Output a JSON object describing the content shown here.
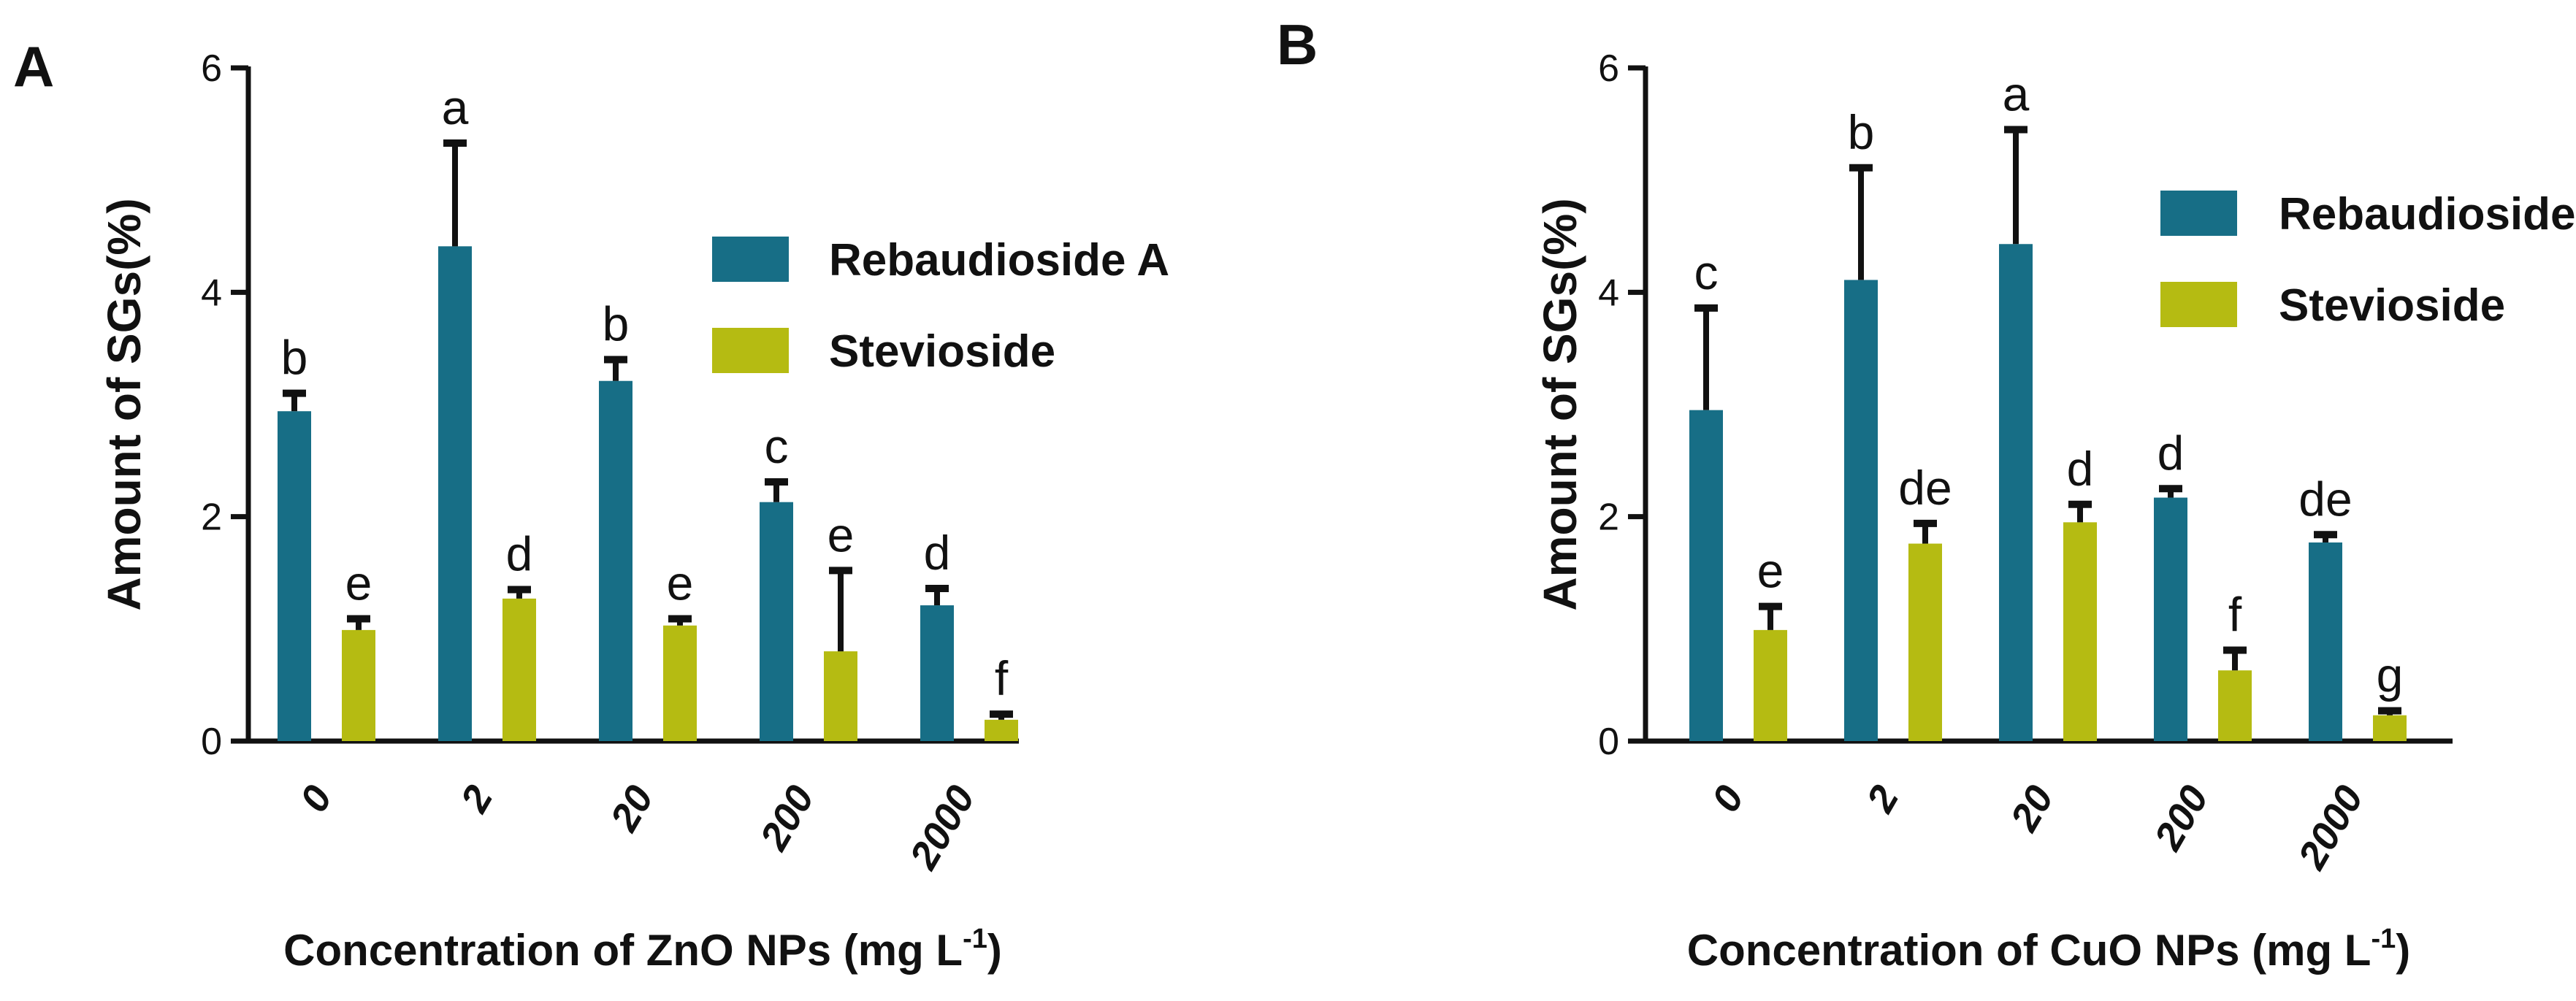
{
  "chart_data": [
    {
      "type": "bar",
      "panel": "A",
      "categories": [
        "0",
        "2",
        "20",
        "200",
        "2000"
      ],
      "series": [
        {
          "name": "Rebaudioside A",
          "color": "#176e86",
          "values": [
            2.94,
            4.41,
            3.21,
            2.13,
            1.21
          ],
          "errors": [
            0.16,
            0.92,
            0.19,
            0.18,
            0.15
          ],
          "labels": [
            "b",
            "a",
            "b",
            "c",
            "d"
          ]
        },
        {
          "name": "Stevioside",
          "color": "#b5bb12",
          "values": [
            0.99,
            1.27,
            1.03,
            0.8,
            0.19
          ],
          "errors": [
            0.1,
            0.08,
            0.06,
            0.72,
            0.05
          ],
          "labels": [
            "e",
            "d",
            "e",
            "e",
            "f"
          ]
        }
      ],
      "title": "",
      "ylabel": "Amount of SGs(%)",
      "xlabel": "Concentration of ZnO NPs",
      "xlabel_unit": "(mg L",
      "xlabel_unit_sup": "-1",
      "xlabel_unit_close": ")",
      "yticks": [
        "0",
        "2",
        "4",
        "6"
      ],
      "ylim": [
        0,
        6
      ],
      "legend_position": "top-right"
    },
    {
      "type": "bar",
      "panel": "B",
      "categories": [
        "0",
        "2",
        "20",
        "200",
        "2000"
      ],
      "series": [
        {
          "name": "Rebaudioside A",
          "color": "#176e86",
          "values": [
            2.95,
            4.11,
            4.43,
            2.17,
            1.77
          ],
          "errors": [
            0.91,
            1.0,
            1.02,
            0.08,
            0.07
          ],
          "labels": [
            "c",
            "b",
            "a",
            "d",
            "de"
          ]
        },
        {
          "name": "Stevioside",
          "color": "#b5bb12",
          "values": [
            0.99,
            1.76,
            1.95,
            0.63,
            0.23
          ],
          "errors": [
            0.21,
            0.18,
            0.16,
            0.18,
            0.04
          ],
          "labels": [
            "e",
            "de",
            "d",
            "f",
            "g"
          ]
        }
      ],
      "title": "",
      "ylabel": "Amount of SGs(%)",
      "xlabel": "Concentration of CuO NPs",
      "xlabel_unit": "(mg L",
      "xlabel_unit_sup": "-1",
      "xlabel_unit_close": ")",
      "yticks": [
        "0",
        "2",
        "4",
        "6"
      ],
      "ylim": [
        0,
        6
      ],
      "legend_position": "top-right"
    }
  ]
}
